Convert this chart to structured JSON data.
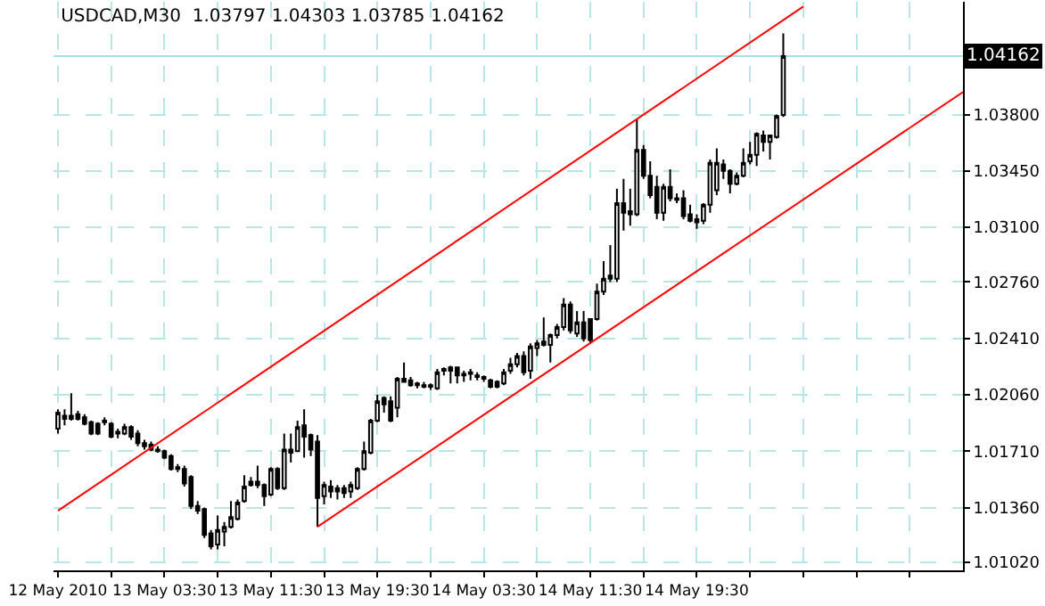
{
  "chart_data": {
    "type": "candlestick",
    "title": "USDCAD,M30  1.03797 1.04303 1.03785 1.04162",
    "x": [
      "2010-05-12T19:30",
      "2010-05-12T20:00",
      "2010-05-12T20:30",
      "2010-05-12T21:00",
      "2010-05-12T21:30",
      "2010-05-12T22:00",
      "2010-05-12T22:30",
      "2010-05-12T23:00",
      "2010-05-12T23:30",
      "2010-05-13T00:00",
      "2010-05-13T00:30",
      "2010-05-13T01:00",
      "2010-05-13T01:30",
      "2010-05-13T02:00",
      "2010-05-13T02:30",
      "2010-05-13T03:00",
      "2010-05-13T03:30",
      "2010-05-13T04:00",
      "2010-05-13T04:30",
      "2010-05-13T05:00",
      "2010-05-13T05:30",
      "2010-05-13T06:00",
      "2010-05-13T06:30",
      "2010-05-13T07:00",
      "2010-05-13T07:30",
      "2010-05-13T08:00",
      "2010-05-13T08:30",
      "2010-05-13T09:00",
      "2010-05-13T09:30",
      "2010-05-13T10:00",
      "2010-05-13T10:30",
      "2010-05-13T11:00",
      "2010-05-13T11:30",
      "2010-05-13T12:00",
      "2010-05-13T12:30",
      "2010-05-13T13:00",
      "2010-05-13T13:30",
      "2010-05-13T14:00",
      "2010-05-13T14:30",
      "2010-05-13T15:00",
      "2010-05-13T15:30",
      "2010-05-13T16:00",
      "2010-05-13T16:30",
      "2010-05-13T17:00",
      "2010-05-13T17:30",
      "2010-05-13T18:00",
      "2010-05-13T18:30",
      "2010-05-13T19:00",
      "2010-05-13T19:30",
      "2010-05-13T20:00",
      "2010-05-13T20:30",
      "2010-05-13T21:00",
      "2010-05-13T21:30",
      "2010-05-13T22:00",
      "2010-05-13T22:30",
      "2010-05-13T23:00",
      "2010-05-13T23:30",
      "2010-05-14T00:00",
      "2010-05-14T00:30",
      "2010-05-14T01:00",
      "2010-05-14T01:30",
      "2010-05-14T02:00",
      "2010-05-14T02:30",
      "2010-05-14T03:00",
      "2010-05-14T03:30",
      "2010-05-14T04:00",
      "2010-05-14T04:30",
      "2010-05-14T05:00",
      "2010-05-14T05:30",
      "2010-05-14T06:00",
      "2010-05-14T06:30",
      "2010-05-14T07:00",
      "2010-05-14T07:30",
      "2010-05-14T08:00",
      "2010-05-14T08:30",
      "2010-05-14T09:00",
      "2010-05-14T09:30",
      "2010-05-14T10:00",
      "2010-05-14T10:30",
      "2010-05-14T11:00",
      "2010-05-14T11:30",
      "2010-05-14T12:00",
      "2010-05-14T12:30",
      "2010-05-14T13:00",
      "2010-05-14T13:30",
      "2010-05-14T14:00",
      "2010-05-14T14:30",
      "2010-05-14T15:00",
      "2010-05-14T15:30",
      "2010-05-14T16:00",
      "2010-05-14T16:30",
      "2010-05-14T17:00",
      "2010-05-14T17:30",
      "2010-05-14T18:00",
      "2010-05-14T18:30",
      "2010-05-14T19:00",
      "2010-05-14T19:30",
      "2010-05-14T20:00",
      "2010-05-14T20:30",
      "2010-05-14T21:00",
      "2010-05-14T21:30",
      "2010-05-14T22:00",
      "2010-05-14T22:30",
      "2010-05-14T23:00",
      "2010-05-14T23:30",
      "2010-05-15T00:00",
      "2010-05-15T00:30",
      "2010-05-15T01:00",
      "2010-05-15T01:30",
      "2010-05-15T02:00"
    ],
    "ohlc": [
      [
        1.0185,
        1.0197,
        1.0182,
        1.0195
      ],
      [
        1.0193,
        1.0197,
        1.0187,
        1.0191
      ],
      [
        1.0193,
        1.0207,
        1.019,
        1.0191
      ],
      [
        1.0194,
        1.0196,
        1.019,
        1.0191
      ],
      [
        1.0192,
        1.0194,
        1.0187,
        1.0188
      ],
      [
        1.0189,
        1.019,
        1.0181,
        1.0182
      ],
      [
        1.0188,
        1.0189,
        1.0181,
        1.0182
      ],
      [
        1.0189,
        1.0192,
        1.0187,
        1.019
      ],
      [
        1.0188,
        1.0189,
        1.0179,
        1.018
      ],
      [
        1.0182,
        1.0185,
        1.0179,
        1.0183
      ],
      [
        1.0182,
        1.0188,
        1.0181,
        1.0186
      ],
      [
        1.0186,
        1.0187,
        1.0178,
        1.018
      ],
      [
        1.0182,
        1.0184,
        1.0174,
        1.0176
      ],
      [
        1.0176,
        1.0178,
        1.0172,
        1.0174
      ],
      [
        1.0175,
        1.0177,
        1.0171,
        1.0172
      ],
      [
        1.0172,
        1.0174,
        1.017,
        1.0171
      ],
      [
        1.0171,
        1.0172,
        1.0166,
        1.0167
      ],
      [
        1.0168,
        1.0169,
        1.0159,
        1.016
      ],
      [
        1.0161,
        1.0163,
        1.0158,
        1.016
      ],
      [
        1.016,
        1.0162,
        1.0149,
        1.0151
      ],
      [
        1.0155,
        1.0156,
        1.0135,
        1.0137
      ],
      [
        1.0137,
        1.014,
        1.0132,
        1.0134
      ],
      [
        1.0135,
        1.0136,
        1.0117,
        1.0119
      ],
      [
        1.012,
        1.0122,
        1.011,
        1.0112
      ],
      [
        1.0113,
        1.0131,
        1.011,
        1.0122
      ],
      [
        1.0121,
        1.0127,
        1.0112,
        1.0124
      ],
      [
        1.0124,
        1.014,
        1.0123,
        1.013
      ],
      [
        1.0129,
        1.0141,
        1.0128,
        1.0139
      ],
      [
        1.014,
        1.0156,
        1.0139,
        1.0149
      ],
      [
        1.015,
        1.0155,
        1.0149,
        1.0152
      ],
      [
        1.0152,
        1.0162,
        1.0148,
        1.015
      ],
      [
        1.015,
        1.0151,
        1.0137,
        1.0143
      ],
      [
        1.0144,
        1.0161,
        1.0143,
        1.016
      ],
      [
        1.016,
        1.0161,
        1.0147,
        1.0148
      ],
      [
        1.0148,
        1.0182,
        1.0147,
        1.0172
      ],
      [
        1.0172,
        1.0182,
        1.0164,
        1.017
      ],
      [
        1.0171,
        1.019,
        1.0171,
        1.0186
      ],
      [
        1.0187,
        1.0197,
        1.0167,
        1.018
      ],
      [
        1.0181,
        1.0182,
        1.0168,
        1.0172
      ],
      [
        1.0177,
        1.0181,
        1.0124,
        1.0142
      ],
      [
        1.0143,
        1.0152,
        1.0138,
        1.015
      ],
      [
        1.0149,
        1.0153,
        1.0142,
        1.0146
      ],
      [
        1.0148,
        1.015,
        1.0141,
        1.0146
      ],
      [
        1.0148,
        1.015,
        1.0142,
        1.0145
      ],
      [
        1.0146,
        1.0152,
        1.0142,
        1.015
      ],
      [
        1.0148,
        1.0161,
        1.0147,
        1.016
      ],
      [
        1.016,
        1.0177,
        1.0159,
        1.0171
      ],
      [
        1.017,
        1.0191,
        1.0169,
        1.019
      ],
      [
        1.019,
        1.0206,
        1.0189,
        1.0202
      ],
      [
        1.0204,
        1.0205,
        1.0195,
        1.02
      ],
      [
        1.0202,
        1.0205,
        1.0189,
        1.019
      ],
      [
        1.0198,
        1.0217,
        1.0192,
        1.0216
      ],
      [
        1.0214,
        1.0226,
        1.0214,
        1.0216
      ],
      [
        1.0215,
        1.0217,
        1.0211,
        1.0212
      ],
      [
        1.0213,
        1.0214,
        1.021,
        1.0212
      ],
      [
        1.0212,
        1.0214,
        1.021,
        1.0211
      ],
      [
        1.0211,
        1.0213,
        1.0209,
        1.0212
      ],
      [
        1.021,
        1.0222,
        1.0209,
        1.022
      ],
      [
        1.0221,
        1.0223,
        1.0218,
        1.0222
      ],
      [
        1.0223,
        1.0224,
        1.0213,
        1.0221
      ],
      [
        1.0223,
        1.0223,
        1.0213,
        1.0218
      ],
      [
        1.0219,
        1.0221,
        1.0214,
        1.0218
      ],
      [
        1.0219,
        1.0222,
        1.0215,
        1.022
      ],
      [
        1.0218,
        1.022,
        1.0215,
        1.0217
      ],
      [
        1.0217,
        1.0218,
        1.0214,
        1.0216
      ],
      [
        1.0215,
        1.0216,
        1.021,
        1.0211
      ],
      [
        1.0214,
        1.0215,
        1.021,
        1.0211
      ],
      [
        1.0213,
        1.0222,
        1.0212,
        1.022
      ],
      [
        1.0221,
        1.0229,
        1.0219,
        1.0225
      ],
      [
        1.0225,
        1.0232,
        1.0223,
        1.023
      ],
      [
        1.023,
        1.0233,
        1.0218,
        1.022
      ],
      [
        1.0221,
        1.0238,
        1.0216,
        1.0236
      ],
      [
        1.0235,
        1.024,
        1.023,
        1.0238
      ],
      [
        1.0237,
        1.0254,
        1.0236,
        1.0239
      ],
      [
        1.0237,
        1.0244,
        1.0226,
        1.0243
      ],
      [
        1.0243,
        1.025,
        1.0241,
        1.0248
      ],
      [
        1.0248,
        1.0266,
        1.0246,
        1.0262
      ],
      [
        1.0262,
        1.0264,
        1.0244,
        1.0246
      ],
      [
        1.0244,
        1.0258,
        1.0242,
        1.0251
      ],
      [
        1.0251,
        1.0258,
        1.0239,
        1.0241
      ],
      [
        1.0253,
        1.0253,
        1.0238,
        1.024
      ],
      [
        1.0253,
        1.0275,
        1.0252,
        1.027
      ],
      [
        1.027,
        1.0289,
        1.0268,
        1.0278
      ],
      [
        1.0278,
        1.0299,
        1.0276,
        1.028
      ],
      [
        1.0278,
        1.0334,
        1.0276,
        1.0325
      ],
      [
        1.0325,
        1.034,
        1.0308,
        1.0319
      ],
      [
        1.0318,
        1.0334,
        1.0311,
        1.032
      ],
      [
        1.0318,
        1.0377,
        1.0317,
        1.0358
      ],
      [
        1.0358,
        1.0361,
        1.034,
        1.0342
      ],
      [
        1.0342,
        1.0351,
        1.0328,
        1.033
      ],
      [
        1.0335,
        1.0342,
        1.0315,
        1.0319
      ],
      [
        1.0319,
        1.0337,
        1.0314,
        1.0335
      ],
      [
        1.0335,
        1.0346,
        1.0326,
        1.0328
      ],
      [
        1.0328,
        1.0331,
        1.0325,
        1.0327
      ],
      [
        1.0328,
        1.0333,
        1.0315,
        1.0317
      ],
      [
        1.0318,
        1.0324,
        1.0313,
        1.0314
      ],
      [
        1.0315,
        1.0318,
        1.0309,
        1.0313
      ],
      [
        1.0314,
        1.0325,
        1.0312,
        1.0324
      ],
      [
        1.0324,
        1.0352,
        1.0319,
        1.035
      ],
      [
        1.0333,
        1.0359,
        1.033,
        1.035
      ],
      [
        1.0349,
        1.0352,
        1.034,
        1.0345
      ],
      [
        1.0345,
        1.0346,
        1.0331,
        1.0337
      ],
      [
        1.0337,
        1.0344,
        1.0336,
        1.0342
      ],
      [
        1.0342,
        1.0359,
        1.0341,
        1.035
      ],
      [
        1.0351,
        1.0363,
        1.0349,
        1.0355
      ],
      [
        1.0355,
        1.0369,
        1.0348,
        1.0368
      ],
      [
        1.0367,
        1.037,
        1.0357,
        1.0363
      ],
      [
        1.0363,
        1.0367,
        1.0352,
        1.0367
      ],
      [
        1.0366,
        1.038,
        1.0365,
        1.0379
      ],
      [
        1.03797,
        1.04303,
        1.03785,
        1.04162
      ]
    ],
    "series": [
      {
        "type": "line",
        "color": "#ff0000",
        "x": [
          "2010-05-12T19:30",
          "2010-05-15T03:30"
        ],
        "values": [
          1.0134,
          1.0447
        ]
      },
      {
        "type": "line",
        "color": "#ff0000",
        "x": [
          "2010-05-13T15:00",
          "2010-05-15T15:30"
        ],
        "values": [
          1.0124,
          1.0394
        ]
      }
    ],
    "xlim": [
      "2010-05-12T19:10",
      "2010-05-15T15:30"
    ],
    "xticks": [
      {
        "value": "2010-05-12T19:30",
        "label": "12 May 2010"
      },
      {
        "value": "2010-05-12T23:30",
        "label": null
      },
      {
        "value": "2010-05-13T03:30",
        "label": "13 May 03:30"
      },
      {
        "value": "2010-05-13T07:30",
        "label": null
      },
      {
        "value": "2010-05-13T11:30",
        "label": "13 May 11:30"
      },
      {
        "value": "2010-05-13T15:30",
        "label": null
      },
      {
        "value": "2010-05-13T19:30",
        "label": "13 May 19:30"
      },
      {
        "value": "2010-05-13T23:30",
        "label": null
      },
      {
        "value": "2010-05-14T03:30",
        "label": "14 May 03:30"
      },
      {
        "value": "2010-05-14T07:30",
        "label": null
      },
      {
        "value": "2010-05-14T11:30",
        "label": "14 May 11:30"
      },
      {
        "value": "2010-05-14T15:30",
        "label": null
      },
      {
        "value": "2010-05-14T19:30",
        "label": "14 May 19:30"
      },
      {
        "value": "2010-05-14T23:30",
        "label": null
      },
      {
        "value": "2010-05-15T03:30",
        "label": null
      },
      {
        "value": "2010-05-15T07:30",
        "label": null
      },
      {
        "value": "2010-05-15T11:30",
        "label": null
      }
    ],
    "ylim": [
      1.0097,
      1.045
    ],
    "yticks": [
      {
        "value": 1.0102,
        "label": "1.01020"
      },
      {
        "value": 1.0136,
        "label": "1.01360"
      },
      {
        "value": 1.0171,
        "label": "1.01710"
      },
      {
        "value": 1.0206,
        "label": "1.02060"
      },
      {
        "value": 1.0241,
        "label": "1.02410"
      },
      {
        "value": 1.0276,
        "label": "1.02760"
      },
      {
        "value": 1.031,
        "label": "1.03100"
      },
      {
        "value": 1.0345,
        "label": "1.03450"
      },
      {
        "value": 1.038,
        "label": "1.03800"
      }
    ],
    "ref_lines": [
      {
        "axis": "y",
        "value": 1.04162,
        "label": "1.04162",
        "color": "#a6e4e4"
      }
    ],
    "grid": true
  }
}
